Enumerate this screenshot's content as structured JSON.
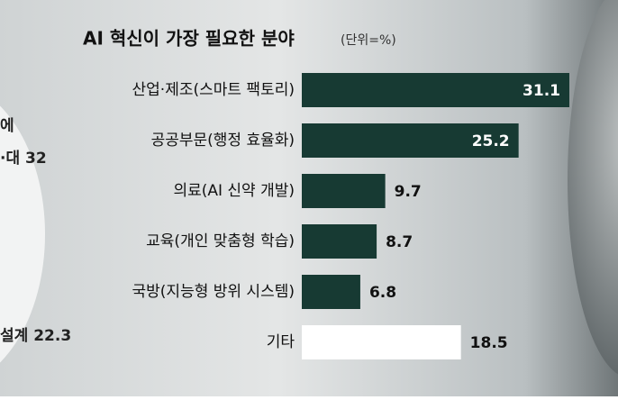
{
  "chart_data": {
    "type": "bar",
    "orientation": "horizontal",
    "title": "AI 혁신이 가장 필요한 분야",
    "subtitle": "(단위=%)",
    "categories": [
      "산업·제조(스마트 팩토리)",
      "공공부문(행정 효율화)",
      "의료(AI 신약 개발)",
      "교육(개인 맞춤형 학습)",
      "국방(지능형 방위 시스템)",
      "기타"
    ],
    "values": [
      31.1,
      25.2,
      9.7,
      8.7,
      6.8,
      18.5
    ],
    "colors": [
      "#173a33",
      "#173a33",
      "#173a33",
      "#173a33",
      "#173a33",
      "#ffffff"
    ],
    "annotations": [
      "에",
      "·대 32",
      "설계 22.3"
    ]
  }
}
